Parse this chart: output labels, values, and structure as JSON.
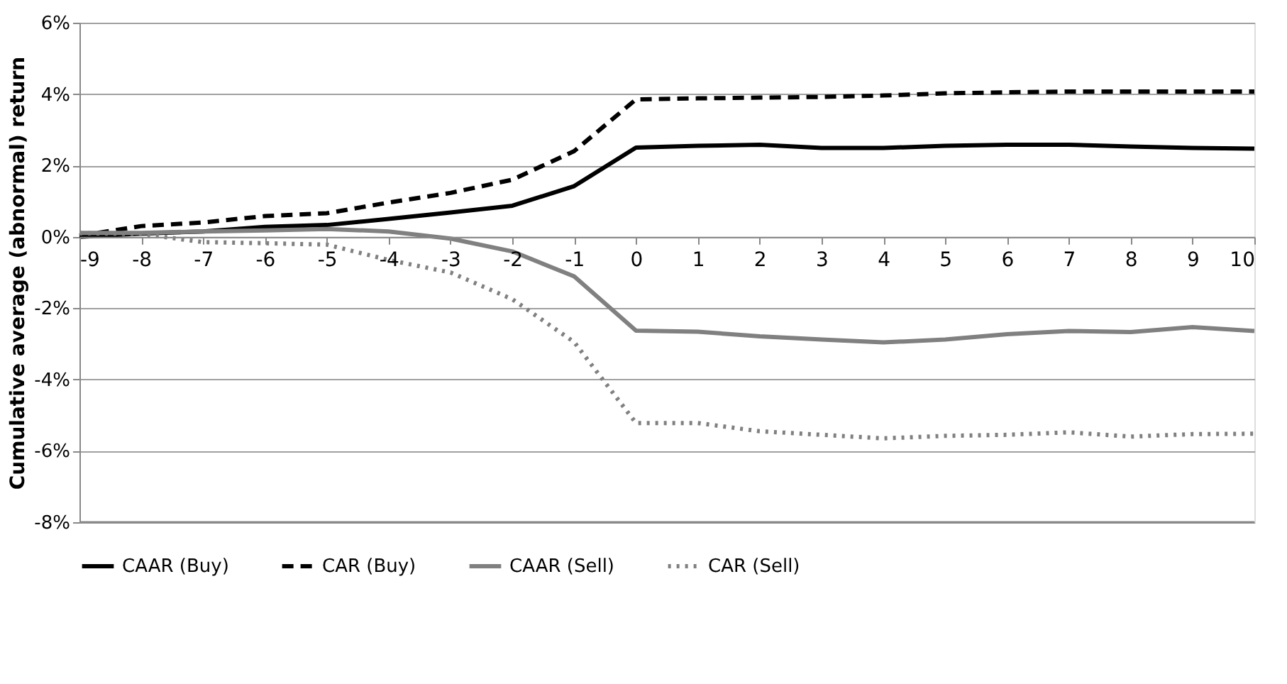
{
  "chart_data": {
    "type": "line",
    "ylabel": "Cumulative average (abnormal) return",
    "x": [
      -9,
      -8,
      -7,
      -6,
      -5,
      -4,
      -3,
      -2,
      -1,
      0,
      1,
      2,
      3,
      4,
      5,
      6,
      7,
      8,
      9,
      10
    ],
    "xlim": [
      -9,
      10
    ],
    "xticks": [
      -9,
      -8,
      -7,
      -6,
      -5,
      -4,
      -3,
      -2,
      -1,
      0,
      1,
      2,
      3,
      4,
      5,
      6,
      7,
      8,
      9,
      10
    ],
    "ylim": [
      -8,
      6
    ],
    "yticks": [
      {
        "value": -8,
        "label": "-8%"
      },
      {
        "value": -6,
        "label": "-6%"
      },
      {
        "value": -4,
        "label": "-4%"
      },
      {
        "value": -2,
        "label": "-2%"
      },
      {
        "value": 0,
        "label": "0%"
      },
      {
        "value": 2,
        "label": "2%"
      },
      {
        "value": 4,
        "label": "4%"
      },
      {
        "value": 6,
        "label": "6%"
      }
    ],
    "grid": "y",
    "legend": "bottom",
    "marker": "none",
    "series": [
      {
        "name": "CAAR (Buy)",
        "color": "#000000",
        "line_style": "solid",
        "values": [
          0,
          0.09,
          0.15,
          0.28,
          0.33,
          0.5,
          0.68,
          0.87,
          1.42,
          2.5,
          2.55,
          2.58,
          2.49,
          2.49,
          2.55,
          2.58,
          2.58,
          2.53,
          2.49,
          2.47
        ]
      },
      {
        "name": "CAR (Buy)",
        "color": "#000000",
        "line_style": "dashed",
        "values": [
          0.03,
          0.3,
          0.4,
          0.58,
          0.66,
          0.96,
          1.23,
          1.6,
          2.4,
          3.85,
          3.88,
          3.9,
          3.92,
          3.96,
          4.02,
          4.05,
          4.07,
          4.07,
          4.07,
          4.07
        ]
      },
      {
        "name": "CAAR (Sell)",
        "color": "#808080",
        "line_style": "solid",
        "values": [
          0.11,
          0.11,
          0.15,
          0.18,
          0.22,
          0.15,
          -0.05,
          -0.41,
          -1.11,
          -2.63,
          -2.66,
          -2.79,
          -2.88,
          -2.96,
          -2.88,
          -2.73,
          -2.64,
          -2.67,
          -2.53,
          -2.64
        ]
      },
      {
        "name": "CAR (Sell)",
        "color": "#808080",
        "line_style": "dotted",
        "values": [
          0.1,
          0.08,
          -0.15,
          -0.18,
          -0.22,
          -0.65,
          -1.0,
          -1.75,
          -2.95,
          -5.22,
          -5.22,
          -5.45,
          -5.55,
          -5.65,
          -5.58,
          -5.55,
          -5.48,
          -5.6,
          -5.53,
          -5.52
        ]
      }
    ]
  }
}
